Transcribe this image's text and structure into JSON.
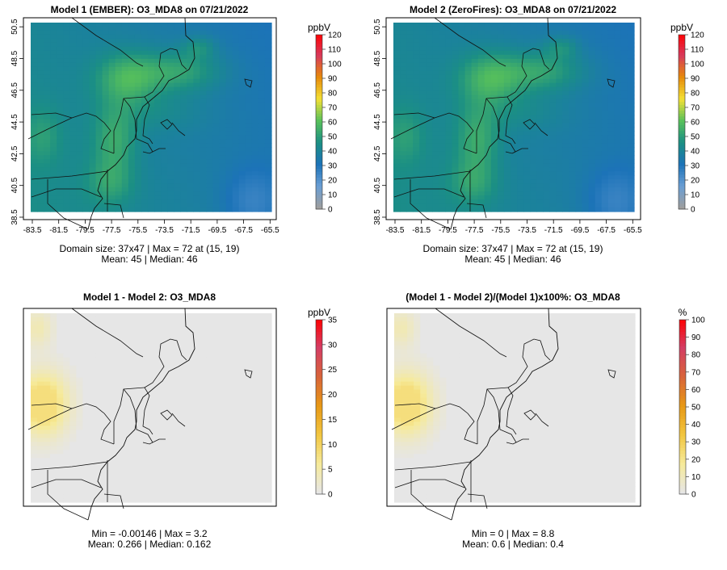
{
  "panels": [
    {
      "id": "p1",
      "title": "Model 1 (EMBER): O3_MDA8 on 07/21/2022",
      "unit": "ppbV",
      "field": "ozone",
      "has_axes": true,
      "legend": {
        "ticks": [
          "0",
          "10",
          "20",
          "30",
          "40",
          "50",
          "60",
          "70",
          "80",
          "90",
          "100",
          "110",
          "120"
        ],
        "min": 0,
        "max": 120
      },
      "stats": [
        "Domain size: 37x47 | Max = 72 at (15, 19)",
        "Mean: 45 |  Median: 46"
      ]
    },
    {
      "id": "p2",
      "title": "Model 2 (ZeroFires): O3_MDA8 on 07/21/2022",
      "unit": "ppbV",
      "field": "ozone",
      "has_axes": true,
      "legend": {
        "ticks": [
          "0",
          "10",
          "20",
          "30",
          "40",
          "50",
          "60",
          "70",
          "80",
          "90",
          "100",
          "110",
          "120"
        ],
        "min": 0,
        "max": 120
      },
      "stats": [
        "Domain size: 37x47 | Max = 72 at (15, 19)",
        "Mean: 45 |  Median: 46"
      ]
    },
    {
      "id": "p3",
      "title": "Model 1 - Model 2: O3_MDA8",
      "unit": "ppbV",
      "field": "diff",
      "has_axes": false,
      "legend": {
        "ticks": [
          "0",
          "5",
          "10",
          "15",
          "20",
          "25",
          "30",
          "35"
        ],
        "min": 0,
        "max": 35
      },
      "stats": [
        "Min = -0.00146 | Max = 3.2",
        "Mean: 0.266 |  Median: 0.162"
      ]
    },
    {
      "id": "p4",
      "title": "(Model 1 - Model 2)/(Model 1)x100%: O3_MDA8",
      "unit": "%",
      "field": "diff",
      "has_axes": false,
      "legend": {
        "ticks": [
          "0",
          "10",
          "20",
          "30",
          "40",
          "50",
          "60",
          "70",
          "80",
          "90",
          "100"
        ],
        "min": 0,
        "max": 100
      },
      "stats": [
        "Min = 0 | Max = 8.8",
        "Mean: 0.6 |  Median: 0.4"
      ]
    }
  ],
  "chart_data": {
    "type": "heatmap",
    "grid": {
      "cols": 37,
      "rows": 47
    },
    "x_axis": {
      "ticks": [
        "-83.5",
        "-81.5",
        "-79.5",
        "-77.5",
        "-75.5",
        "-73.5",
        "-71.5",
        "-69.5",
        "-67.5",
        "-65.5"
      ],
      "range": [
        -84,
        -65
      ]
    },
    "y_axis": {
      "ticks": [
        "38.5",
        "40.5",
        "42.5",
        "44.5",
        "46.5",
        "48.5",
        "50.5"
      ],
      "range": [
        38.3,
        50.6
      ]
    },
    "colorscale_ppbv": [
      "#9e9e9e",
      "#6a9ed4",
      "#1c73b8",
      "#1b8f84",
      "#58c15a",
      "#f4e034",
      "#e68a0b",
      "#d7395c",
      "#ff0000"
    ],
    "colorscale_diff": [
      "#e6e6e6",
      "#f6ea9a",
      "#f2c640",
      "#e79815",
      "#d8643a",
      "#d43d64",
      "#ff0000"
    ],
    "background_color": "#e6e6e6"
  }
}
